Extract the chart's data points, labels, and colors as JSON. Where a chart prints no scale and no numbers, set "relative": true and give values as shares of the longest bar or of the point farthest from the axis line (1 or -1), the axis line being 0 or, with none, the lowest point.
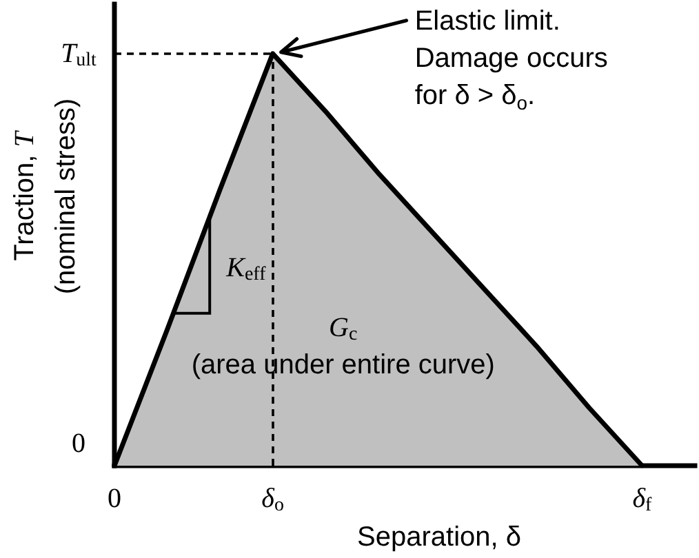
{
  "chart_data": {
    "type": "area",
    "relative": true,
    "xlabel": "Separation, δ",
    "ylabel": "Traction, T\n(nominal stress)",
    "categories": [
      "0",
      null,
      null,
      "δ$_{o}$",
      null,
      null,
      null,
      null,
      null,
      null,
      "δ$_{f}$",
      null
    ],
    "values": [
      0,
      0.33,
      0.67,
      1,
      0.86,
      0.71,
      0.57,
      0.43,
      0.29,
      0.14,
      0,
      null
    ],
    "color": "#c0c0c0",
    "ref_lines": [
      {
        "axis": "y",
        "value": 1,
        "line_style": "dashed",
        "color": "#000000"
      },
      {
        "axis": "x",
        "value": "δ$_{o}$",
        "line_style": "dashed",
        "color": "#000000"
      }
    ],
    "annotations": [
      "0",
      "T$_{ult}$",
      "Elastic limit.\nDamage occurs\nfor δ > δ$_{o}$.",
      "K$_{eff}$",
      "G$_{c}$",
      "(area under entire curve)"
    ]
  }
}
